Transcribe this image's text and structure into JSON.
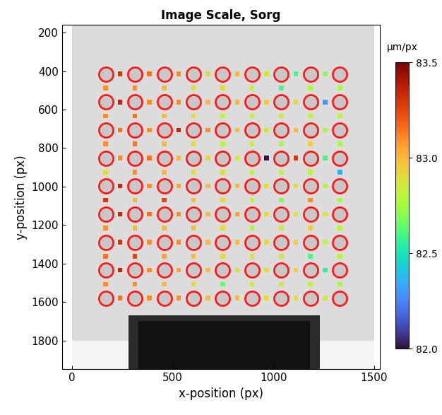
{
  "chart_data": {
    "type": "scatter",
    "title": "Image Scale, Sorg",
    "xlabel": "x-position (px)",
    "ylabel": "y-position (px)",
    "xlim": [
      -50,
      1530
    ],
    "ylim": [
      1950,
      160
    ],
    "xticks": [
      0,
      500,
      1000,
      1500
    ],
    "yticks": [
      200,
      400,
      600,
      800,
      1000,
      1200,
      1400,
      1600,
      1800
    ],
    "circle_x": [
      167,
      312,
      458,
      603,
      748,
      894,
      1039,
      1184,
      1330
    ],
    "circle_y": [
      415,
      561,
      706,
      852,
      997,
      1143,
      1289,
      1434,
      1580
    ],
    "horizontal_values": [
      [
        83.3,
        83.15,
        83.1,
        82.9,
        83.0,
        82.85,
        82.6,
        82.7
      ],
      [
        83.35,
        83.1,
        83.1,
        83.0,
        83.0,
        82.95,
        82.9,
        82.3
      ],
      [
        83.15,
        83.1,
        83.35,
        83.1,
        83.0,
        82.85,
        83.0,
        82.75
      ],
      [
        83.1,
        83.15,
        83.0,
        82.9,
        82.85,
        82.0,
        83.3,
        82.6
      ],
      [
        83.35,
        83.1,
        83.05,
        83.0,
        83.0,
        82.9,
        82.9,
        82.75
      ],
      [
        83.35,
        83.15,
        83.1,
        83.0,
        83.05,
        82.9,
        82.85,
        82.85
      ],
      [
        83.3,
        83.1,
        83.1,
        83.0,
        83.0,
        82.9,
        82.95,
        82.8
      ],
      [
        83.35,
        83.1,
        83.05,
        83.0,
        82.9,
        82.9,
        82.95,
        82.55
      ],
      [
        83.15,
        83.1,
        83.1,
        83.0,
        83.0,
        82.9,
        82.9,
        82.85
      ]
    ],
    "vertical_values": [
      [
        83.1,
        83.1,
        83.0,
        82.9,
        82.9,
        82.8,
        82.6,
        82.75,
        82.75
      ],
      [
        83.1,
        83.15,
        83.0,
        82.9,
        82.8,
        82.8,
        82.85,
        82.8,
        82.8
      ],
      [
        83.1,
        83.15,
        83.0,
        82.9,
        82.8,
        82.8,
        82.75,
        82.95,
        82.75
      ],
      [
        82.9,
        83.1,
        83.0,
        82.9,
        82.9,
        82.8,
        82.8,
        82.8,
        82.35
      ],
      [
        83.3,
        83.0,
        83.25,
        83.0,
        82.9,
        82.8,
        82.7,
        83.1,
        82.75
      ],
      [
        83.1,
        83.0,
        83.0,
        83.0,
        82.9,
        82.75,
        82.85,
        82.95,
        82.8
      ],
      [
        83.15,
        83.25,
        83.05,
        83.0,
        82.9,
        82.9,
        82.85,
        82.6,
        82.8
      ],
      [
        83.1,
        83.1,
        83.0,
        82.9,
        82.65,
        82.85,
        82.85,
        82.8,
        82.75
      ]
    ],
    "colorbar_label": "µm/px",
    "colorbar_range": [
      82.0,
      83.5
    ],
    "colorbar_ticks": [
      {
        "value": 82.0,
        "label": "82.0"
      },
      82.5,
      {
        "value": 83.0,
        "label": "83.0"
      },
      83.5
    ]
  }
}
